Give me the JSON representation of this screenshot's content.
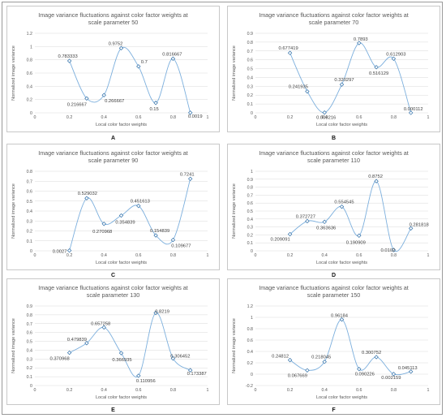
{
  "chart_data": [
    {
      "type": "line",
      "panel_letter": "A",
      "title": "Image variance fluctuations against color factor weights at scale parameter 50",
      "xlabel": "Local color factor weights",
      "ylabel": "Normalized image variance",
      "xlim": [
        0,
        1
      ],
      "ylim": [
        0,
        1.2
      ],
      "yticks": [
        0,
        0.2,
        0.4,
        0.6,
        0.8,
        1,
        1.2
      ],
      "x": [
        0.2,
        0.3,
        0.4,
        0.5,
        0.6,
        0.7,
        0.8,
        0.9
      ],
      "y": [
        0.783333,
        0.216667,
        0.266667,
        0.9752,
        0.7,
        0.15,
        0.816667,
        0.0019
      ],
      "labels": [
        "0.783333",
        "0.216667",
        "0.266667",
        "0.9752",
        "0.7",
        "0.15",
        "0.816667",
        "0.0019"
      ],
      "grid": true
    },
    {
      "type": "line",
      "panel_letter": "B",
      "title": "Image variance fluctuations against color factor weights at scale parameter 70",
      "xlabel": "Local color factor weights",
      "ylabel": "Normalized image variance",
      "xlim": [
        0,
        1
      ],
      "ylim": [
        0,
        0.9
      ],
      "yticks": [
        0,
        0.1,
        0.2,
        0.3,
        0.4,
        0.5,
        0.6,
        0.7,
        0.8,
        0.9
      ],
      "x": [
        0.2,
        0.3,
        0.4,
        0.5,
        0.6,
        0.7,
        0.8,
        0.9
      ],
      "y": [
        0.677419,
        0.241935,
        0.003216,
        0.320297,
        0.7893,
        0.516129,
        0.612903,
        0.000112
      ],
      "labels": [
        "0.677419",
        "0.241935",
        "0.003216",
        "0.320297",
        "0.7893",
        "0.516129",
        "0.612903",
        "0.000112"
      ],
      "grid": true
    },
    {
      "type": "line",
      "panel_letter": "C",
      "title": "Image variance fluctuations against  color factor weights at scale parameter  90",
      "xlabel": "Local color factor weights",
      "ylabel": "Normalized image variance",
      "xlim": [
        0,
        1
      ],
      "ylim": [
        0,
        0.8
      ],
      "yticks": [
        0,
        0.1,
        0.2,
        0.3,
        0.4,
        0.5,
        0.6,
        0.7,
        0.8
      ],
      "x": [
        0.2,
        0.3,
        0.4,
        0.5,
        0.6,
        0.7,
        0.8,
        0.9
      ],
      "y": [
        0.0027,
        0.529032,
        0.270968,
        0.354839,
        0.451613,
        0.154839,
        0.109677,
        0.7241
      ],
      "labels": [
        "0.0027",
        "0.529032",
        "0.270968",
        "0.354839",
        "0.451613",
        "0.154839",
        "0.109677",
        "0.7241"
      ],
      "grid": true
    },
    {
      "type": "line",
      "panel_letter": "D",
      "title": "Image variance fluctuations against color factor weights at scale parameter 110",
      "xlabel": "Local color factor weights",
      "ylabel": "Normalized image variance",
      "xlim": [
        0,
        1
      ],
      "ylim": [
        0,
        1
      ],
      "yticks": [
        0,
        0.1,
        0.2,
        0.3,
        0.4,
        0.5,
        0.6,
        0.7,
        0.8,
        0.9,
        1
      ],
      "x": [
        0.2,
        0.3,
        0.4,
        0.5,
        0.6,
        0.7,
        0.8,
        0.9
      ],
      "y": [
        0.209091,
        0.372727,
        0.363636,
        0.554545,
        0.190909,
        0.8752,
        0.0102,
        0.281818
      ],
      "labels": [
        "0.209091",
        "0.372727",
        "0.363636",
        "0.554545",
        "0.190909",
        "0.8752",
        "0.0102",
        "0.281818"
      ],
      "grid": true
    },
    {
      "type": "line",
      "panel_letter": "E",
      "title": "Image variance fluctuations against color factor weights at scale parameter 130",
      "xlabel": "Local color factor weights",
      "ylabel": "Normalized image variance",
      "xlim": [
        0,
        1
      ],
      "ylim": [
        0,
        0.9
      ],
      "yticks": [
        0,
        0.1,
        0.2,
        0.3,
        0.4,
        0.5,
        0.6,
        0.7,
        0.8,
        0.9
      ],
      "x": [
        0.2,
        0.3,
        0.4,
        0.5,
        0.6,
        0.7,
        0.8,
        0.9
      ],
      "y": [
        0.370968,
        0.479839,
        0.657258,
        0.366935,
        0.110956,
        0.8219,
        0.306452,
        0.173387
      ],
      "labels": [
        "0.370968",
        "0.479839",
        "0.657258",
        "0.366935",
        "0.110956",
        "0.8219",
        "0.306452",
        "0.173387"
      ],
      "grid": true
    },
    {
      "type": "line",
      "panel_letter": "F",
      "title": "Image variance fluctuations against color factor weights at scale parameter 150",
      "xlabel": "Local color factor weights",
      "ylabel": "Normalized image variance",
      "xlim": [
        0,
        1
      ],
      "ylim": [
        -0.2,
        1.2
      ],
      "yticks": [
        -0.2,
        0,
        0.2,
        0.4,
        0.6,
        0.8,
        1,
        1.2
      ],
      "x": [
        0.2,
        0.3,
        0.4,
        0.5,
        0.6,
        0.7,
        0.8,
        0.9
      ],
      "y": [
        0.24812,
        0.067669,
        0.218045,
        0.96184,
        0.090226,
        0.300752,
        0.002159,
        0.045113
      ],
      "labels": [
        "0.24812",
        "0.067669",
        "0.218045",
        "0.96184",
        "0.090226",
        "0.300752",
        "0.002159",
        "0.045113"
      ],
      "grid": true
    }
  ],
  "style": {
    "line_color": "#5b9bd5",
    "marker_edge": "#2f6fa8",
    "grid_color": "#d9d9d9",
    "text_color": "#595959"
  }
}
